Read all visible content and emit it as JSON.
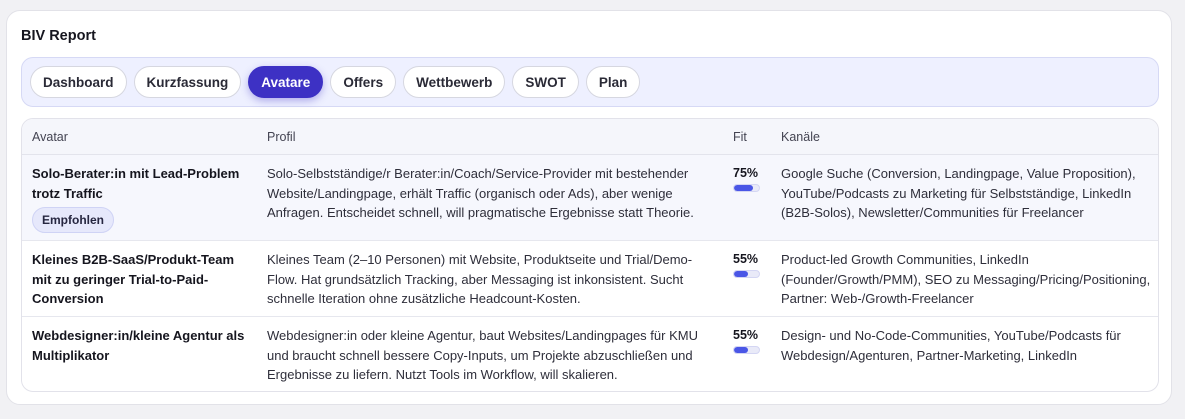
{
  "report": {
    "title": "BIV Report"
  },
  "tabs": [
    {
      "label": "Dashboard",
      "active": false
    },
    {
      "label": "Kurzfassung",
      "active": false
    },
    {
      "label": "Avatare",
      "active": true
    },
    {
      "label": "Offers",
      "active": false
    },
    {
      "label": "Wettbewerb",
      "active": false
    },
    {
      "label": "SWOT",
      "active": false
    },
    {
      "label": "Plan",
      "active": false
    }
  ],
  "table": {
    "headers": {
      "avatar": "Avatar",
      "profil": "Profil",
      "fit": "Fit",
      "kanaele": "Kanäle"
    },
    "rows": [
      {
        "avatar": "Solo-Berater:in mit Lead-Problem trotz Traffic",
        "badge": "Empfohlen",
        "profil": "Solo-Selbstständige/r Berater:in/Coach/Service-Provider mit bestehender Website/Landingpage, erhält Traffic (organisch oder Ads), aber wenige Anfragen. Entscheidet schnell, will pragmatische Ergebnisse statt Theorie.",
        "fit_label": "75%",
        "fit_value": 0.75,
        "kanaele": "Google Suche (Conversion, Landingpage, Value Proposition), YouTube/Podcasts zu Marketing für Selbstständige, LinkedIn (B2B-Solos), Newsletter/Communities für Freelancer"
      },
      {
        "avatar": "Kleines B2B-SaaS/Produkt-Team mit zu geringer Trial-to-Paid-Conversion",
        "badge": "",
        "profil": "Kleines Team (2–10 Personen) mit Website, Produktseite und Trial/Demo-Flow. Hat grundsätzlich Tracking, aber Messaging ist inkonsistent. Sucht schnelle Iteration ohne zusätzliche Headcount-Kosten.",
        "fit_label": "55%",
        "fit_value": 0.55,
        "kanaele": "Product-led Growth Communities, LinkedIn (Founder/Growth/PMM), SEO zu Messaging/Pricing/Positioning, Partner: Web-/Growth-Freelancer"
      },
      {
        "avatar": "Webdesigner:in/kleine Agentur als Multiplikator",
        "badge": "",
        "profil": "Webdesigner:in oder kleine Agentur, baut Websites/Landingpages für KMU und braucht schnell bessere Copy-Inputs, um Projekte abzuschließen und Ergebnisse zu liefern. Nutzt Tools im Workflow, will skalieren.",
        "fit_label": "55%",
        "fit_value": 0.55,
        "kanaele": "Design- und No-Code-Communities, YouTube/Podcasts für Webdesign/Agenturen, Partner-Marketing, LinkedIn"
      }
    ]
  }
}
